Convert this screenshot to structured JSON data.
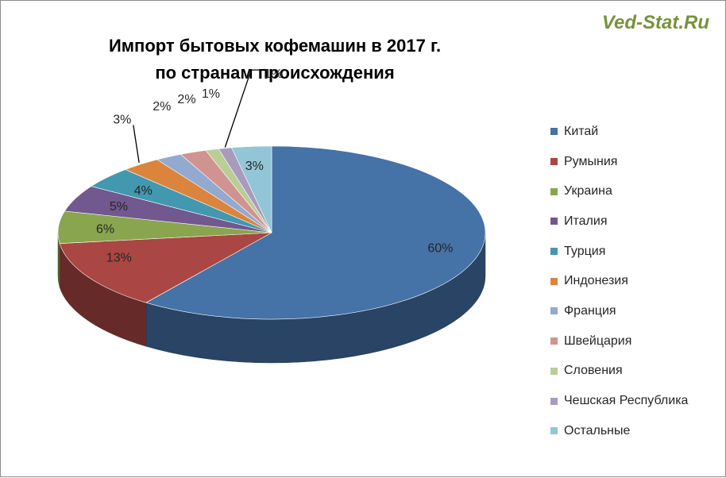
{
  "watermark": "Ved-Stat.Ru",
  "chart_data": {
    "type": "pie",
    "title_lines": [
      "Импорт бытовых кофемашин в 2017 г.",
      "по странам происхождения"
    ],
    "legend_position": "right",
    "slices": [
      {
        "name": "Китай",
        "value": 60,
        "label": "60%",
        "color": "#4572a7"
      },
      {
        "name": "Румыния",
        "value": 13,
        "label": "13%",
        "color": "#aa4643"
      },
      {
        "name": "Украина",
        "value": 6,
        "label": "6%",
        "color": "#89a54e"
      },
      {
        "name": "Италия",
        "value": 5,
        "label": "5%",
        "color": "#71588f"
      },
      {
        "name": "Турция",
        "value": 4,
        "label": "4%",
        "color": "#4198af"
      },
      {
        "name": "Индонезия",
        "value": 3,
        "label": "3%",
        "color": "#db843d"
      },
      {
        "name": "Франция",
        "value": 2,
        "label": "2%",
        "color": "#93a9cf"
      },
      {
        "name": "Швейцария",
        "value": 2,
        "label": "2%",
        "color": "#d19392"
      },
      {
        "name": "Словения",
        "value": 1,
        "label": "1%",
        "color": "#b9cd96"
      },
      {
        "name": "Чешская Республика",
        "value": 1,
        "label": "1%",
        "color": "#a99bbd"
      },
      {
        "name": "Остальные",
        "value": 3,
        "label": "3%",
        "color": "#92c5d6"
      }
    ]
  }
}
